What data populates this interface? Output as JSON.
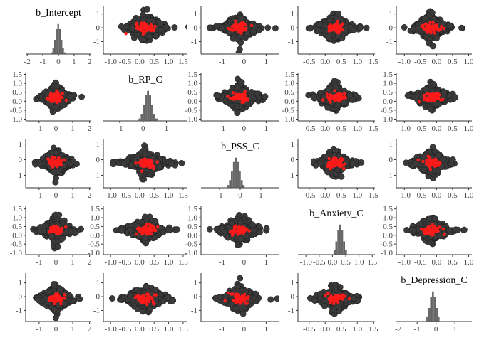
{
  "chart_data": {
    "type": "scatter",
    "layout": "pairs-matrix",
    "params": [
      "b_Intercept",
      "b_RP_C",
      "b_PSS_C",
      "b_Anxiety_C",
      "b_Depression_C"
    ],
    "marker_colors": {
      "draws": "#3a3a3a",
      "divergent": "#ff1a1a",
      "hist": "#6e6e6e",
      "axis": "#333333"
    },
    "axes": [
      {
        "range": [
          -2,
          2
        ],
        "ticks": [
          "-2",
          "-1",
          "0",
          "1",
          "2"
        ],
        "tick_values": [
          -2,
          -1,
          0,
          1,
          2
        ],
        "spread": 0.38,
        "center": 0
      },
      {
        "range": [
          -1.5,
          1.7
        ],
        "ticks": [
          "-1.0",
          "-0.5",
          "0.0",
          "0.5",
          "1.0",
          "1.5"
        ],
        "tick_values": [
          -1.0,
          -0.5,
          0.0,
          0.5,
          1.0,
          1.5
        ],
        "spread": 0.35,
        "center": 0.22
      },
      {
        "range": [
          -1.9,
          1.9
        ],
        "ticks": [
          "-1",
          "0",
          "1"
        ],
        "tick_values": [
          -1,
          0,
          1
        ],
        "spread": 0.38,
        "center": -0.2
      },
      {
        "range": [
          -1.3,
          1.6
        ],
        "ticks": [
          "-1.0",
          "-0.5",
          "0.0",
          "0.5",
          "1.0",
          "1.5"
        ],
        "tick_values": [
          -1.0,
          -0.5,
          0.0,
          0.5,
          1.0,
          1.5
        ],
        "spread": 0.25,
        "center": 0.3
      },
      {
        "range": [
          -2.0,
          1.9
        ],
        "ticks": [
          "-2",
          "-1",
          "0",
          "1"
        ],
        "tick_values": [
          -2,
          -1,
          0,
          1
        ],
        "spread": 0.35,
        "center": -0.15
      }
    ],
    "scatter_axes": [
      {
        "x_range": [
          -2,
          2
        ],
        "x_ticks": [
          "-2",
          "-1",
          "0",
          "1",
          "2"
        ],
        "x_tick_values": [
          -2,
          -1,
          0,
          1,
          2
        ],
        "y_range": [
          -1.9,
          1.6
        ],
        "y_ticks": [
          "-1",
          "0",
          "1"
        ],
        "y_tick_values": [
          -1,
          0,
          1
        ]
      },
      {
        "x_range": [
          -1.25,
          1.65
        ],
        "x_ticks": [
          "-1.0",
          "-0.5",
          "0.0",
          "0.5",
          "1.0",
          "1.5"
        ],
        "x_tick_values": [
          -1.0,
          -0.5,
          0.0,
          0.5,
          1.0,
          1.5
        ],
        "y_range": [
          -1.1,
          1.6
        ],
        "y_ticks": [
          "-1.0",
          "-0.5",
          "0.0",
          "0.5",
          "1.0",
          "1.5"
        ],
        "y_tick_values": [
          -1.0,
          -0.5,
          0.0,
          0.5,
          1.0,
          1.5
        ]
      },
      {
        "x_range": [
          -1.95,
          1.6
        ],
        "x_ticks": [
          "-1",
          "0",
          "1"
        ],
        "x_tick_values": [
          -1,
          0,
          1
        ],
        "y_range": [
          -1.8,
          1.3
        ],
        "y_ticks": [
          "-1",
          "0",
          "1"
        ],
        "y_tick_values": [
          -1,
          0,
          1
        ]
      },
      {
        "x_range": [
          -1.25,
          1.55
        ],
        "x_ticks": [
          "-1.0",
          "-0.5",
          "0.0",
          "0.5",
          "1.0",
          "1.5"
        ],
        "x_tick_values": [
          -1.0,
          -0.5,
          0.0,
          0.5,
          1.0,
          1.5
        ],
        "y_range": [
          -1.1,
          1.65
        ],
        "y_ticks": [
          "-1.0",
          "-0.5",
          "0.0",
          "0.5",
          "1.0",
          "1.5"
        ],
        "y_tick_values": [
          -1.0,
          -0.5,
          0.0,
          0.5,
          1.0,
          1.5
        ]
      },
      {
        "x_range": [
          -2.0,
          1.9
        ],
        "x_ticks": [
          "-2",
          "-1",
          "0",
          "1"
        ],
        "x_tick_values": [
          -2,
          -1,
          0,
          1
        ],
        "y_range": [
          -1.8,
          1.7
        ],
        "y_ticks": [
          "-1",
          "0",
          "1"
        ],
        "y_tick_values": [
          -1,
          0,
          1
        ]
      }
    ],
    "column_x_axes": [
      {
        "ticks": [
          "-1",
          "0",
          "1",
          "2"
        ],
        "tick_values": [
          -1,
          0,
          1,
          2
        ],
        "range": [
          -1.8,
          2.1
        ]
      },
      {
        "ticks": [
          "-1.0",
          "-0.5",
          "0.0",
          "0.5",
          "1.0",
          "1.5"
        ],
        "tick_values": [
          -1.0,
          -0.5,
          0.0,
          0.5,
          1.0,
          1.5
        ],
        "range": [
          -1.25,
          1.65
        ]
      },
      {
        "ticks": [
          "-1",
          "0",
          "1"
        ],
        "tick_values": [
          -1,
          0,
          1
        ],
        "range": [
          -1.95,
          1.6
        ]
      },
      {
        "ticks": [
          "-0.5",
          "0.0",
          "0.5",
          "1.0",
          "1.5"
        ],
        "tick_values": [
          -0.5,
          0.0,
          0.5,
          1.0,
          1.5
        ],
        "range": [
          -0.85,
          1.55
        ]
      },
      {
        "ticks": [
          "-1.0",
          "-0.5",
          "0.0",
          "0.5",
          "1.0"
        ],
        "tick_values": [
          -1.0,
          -0.5,
          0.0,
          0.5,
          1.0
        ],
        "range": [
          -1.25,
          1.1
        ]
      }
    ],
    "row_y_axes": [
      {
        "ticks": [
          "-1",
          "0",
          "1"
        ],
        "tick_values": [
          -1,
          0,
          1
        ],
        "range": [
          -1.9,
          1.6
        ]
      },
      {
        "ticks": [
          "-1.0",
          "-0.5",
          "0.0",
          "0.5",
          "1.0",
          "1.5"
        ],
        "tick_values": [
          -1.0,
          -0.5,
          0.0,
          0.5,
          1.0,
          1.5
        ],
        "range": [
          -1.1,
          1.6
        ]
      },
      {
        "ticks": [
          "-1",
          "0",
          "1"
        ],
        "tick_values": [
          -1,
          0,
          1
        ],
        "range": [
          -1.8,
          1.3
        ]
      },
      {
        "ticks": [
          "-1.0",
          "-0.5",
          "0.0",
          "0.5",
          "1.0",
          "1.5"
        ],
        "tick_values": [
          -1.0,
          -0.5,
          0.0,
          0.5,
          1.0,
          1.5
        ],
        "range": [
          -1.1,
          1.65
        ]
      },
      {
        "ticks": [
          "-1",
          "0",
          "1"
        ],
        "tick_values": [
          -1,
          0,
          1
        ],
        "range": [
          -1.8,
          1.7
        ]
      }
    ],
    "diag_x_axes": [
      {
        "ticks": [
          "-2",
          "-1",
          "0",
          "1",
          "2"
        ],
        "tick_values": [
          -2,
          -1,
          0,
          1,
          2
        ],
        "range": [
          -2.1,
          2.1
        ]
      },
      {
        "ticks": [
          "-1",
          "0",
          "1"
        ],
        "tick_values": [
          -1,
          0,
          1
        ],
        "range": [
          -1.7,
          1.9
        ]
      },
      {
        "ticks": [
          "-1",
          "0",
          "1"
        ],
        "tick_values": [
          -1,
          0,
          1
        ],
        "range": [
          -1.9,
          1.9
        ]
      },
      {
        "ticks": [
          "-1.0",
          "-0.5",
          "0.0",
          "0.5",
          "1.0",
          "1.5"
        ],
        "tick_values": [
          -1.0,
          -0.5,
          0.0,
          0.5,
          1.0,
          1.5
        ],
        "range": [
          -1.3,
          1.6
        ]
      },
      {
        "ticks": [
          "-2",
          "-1",
          "0",
          "1"
        ],
        "tick_values": [
          -2,
          -1,
          0,
          1
        ],
        "range": [
          -2.1,
          1.9
        ]
      }
    ],
    "draws_per_panel": 260,
    "divergent_per_panel": 55,
    "seed": 7
  }
}
